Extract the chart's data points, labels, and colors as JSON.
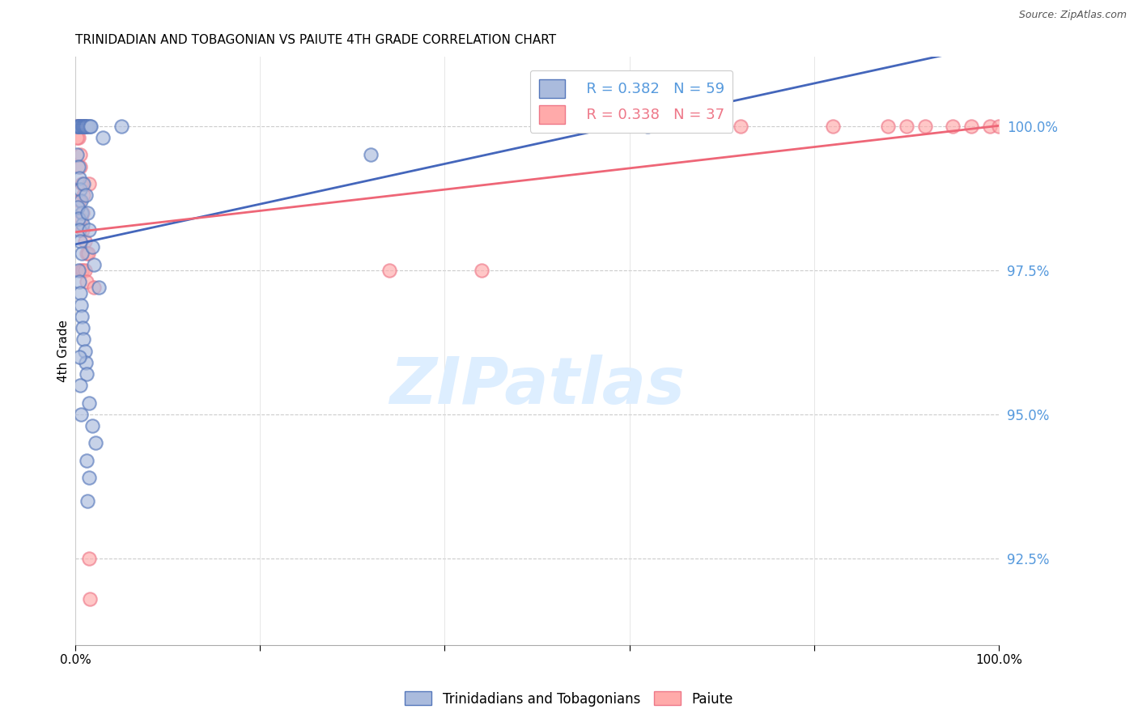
{
  "title": "TRINIDADIAN AND TOBAGONIAN VS PAIUTE 4TH GRADE CORRELATION CHART",
  "source": "Source: ZipAtlas.com",
  "ylabel": "4th Grade",
  "yticks": [
    92.5,
    95.0,
    97.5,
    100.0
  ],
  "ytick_labels": [
    "92.5%",
    "95.0%",
    "97.5%",
    "100.0%"
  ],
  "xlim": [
    0.0,
    100.0
  ],
  "ylim": [
    91.0,
    101.2
  ],
  "blue_color": "#AABBDD",
  "blue_edge_color": "#5577BB",
  "pink_color": "#FFAAAA",
  "pink_edge_color": "#EE7788",
  "blue_line_color": "#4466BB",
  "pink_line_color": "#EE6677",
  "legend_blue_r": "R = 0.382",
  "legend_blue_n": "N = 59",
  "legend_pink_r": "R = 0.338",
  "legend_pink_n": "N = 37",
  "axis_label_color": "#5599DD",
  "background_color": "#FFFFFF",
  "title_fontsize": 11,
  "watermark_color": "#DDEEFF"
}
